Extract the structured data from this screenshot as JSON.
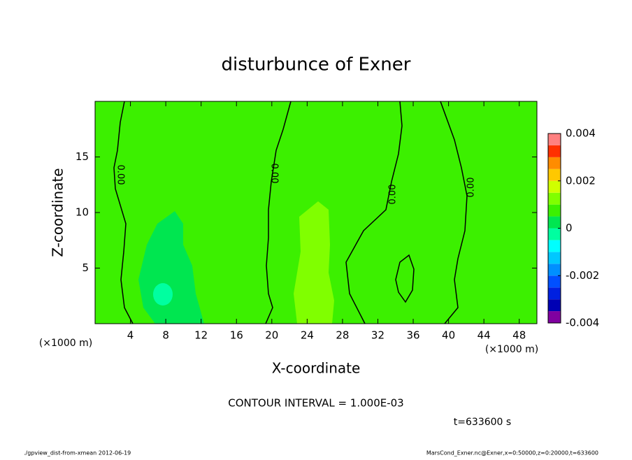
{
  "chart_data": {
    "type": "contour",
    "title": "disturbunce of Exner",
    "xlabel": "X-coordinate",
    "ylabel": "Z-coordinate",
    "x_unit_left": "(×1000 m)",
    "x_unit_right": "(×1000 m)",
    "xlim": [
      0,
      50
    ],
    "xticks": [
      4,
      8,
      12,
      16,
      20,
      24,
      28,
      32,
      36,
      40,
      44,
      48
    ],
    "ylim": [
      0,
      20
    ],
    "yticks": [
      5,
      10,
      15
    ],
    "contour_labels": [
      "0.00",
      "0.00",
      "0.00",
      "0.00"
    ],
    "contour_interval": "CONTOUR INTERVAL = 1.000E-03",
    "time_label": "t=633600 s",
    "footer_left": "./gpview_dist-from-xmean  2012-06-19",
    "footer_right": "MarsCond_Exner.nc@Exner,x=0:50000,z=0:20000,t=633600",
    "colorbar": {
      "clim": [
        -0.004,
        0.004
      ],
      "ticks": [
        0.004,
        0.002,
        0,
        -0.002,
        -0.004
      ],
      "levels": [
        -0.004,
        -0.0035,
        -0.003,
        -0.0025,
        -0.002,
        -0.0015,
        -0.001,
        -0.0005,
        0,
        0.0005,
        0.001,
        0.0015,
        0.002,
        0.0025,
        0.003,
        0.0035,
        0.004
      ],
      "colors": [
        "#8000a0",
        "#0000b4",
        "#0020e0",
        "#0050ff",
        "#0090ff",
        "#00c8ff",
        "#00ffff",
        "#00ffa0",
        "#00e650",
        "#3cf000",
        "#80ff00",
        "#d0ff00",
        "#ffc800",
        "#ff8c00",
        "#ff3000",
        "#ff8080"
      ]
    }
  }
}
